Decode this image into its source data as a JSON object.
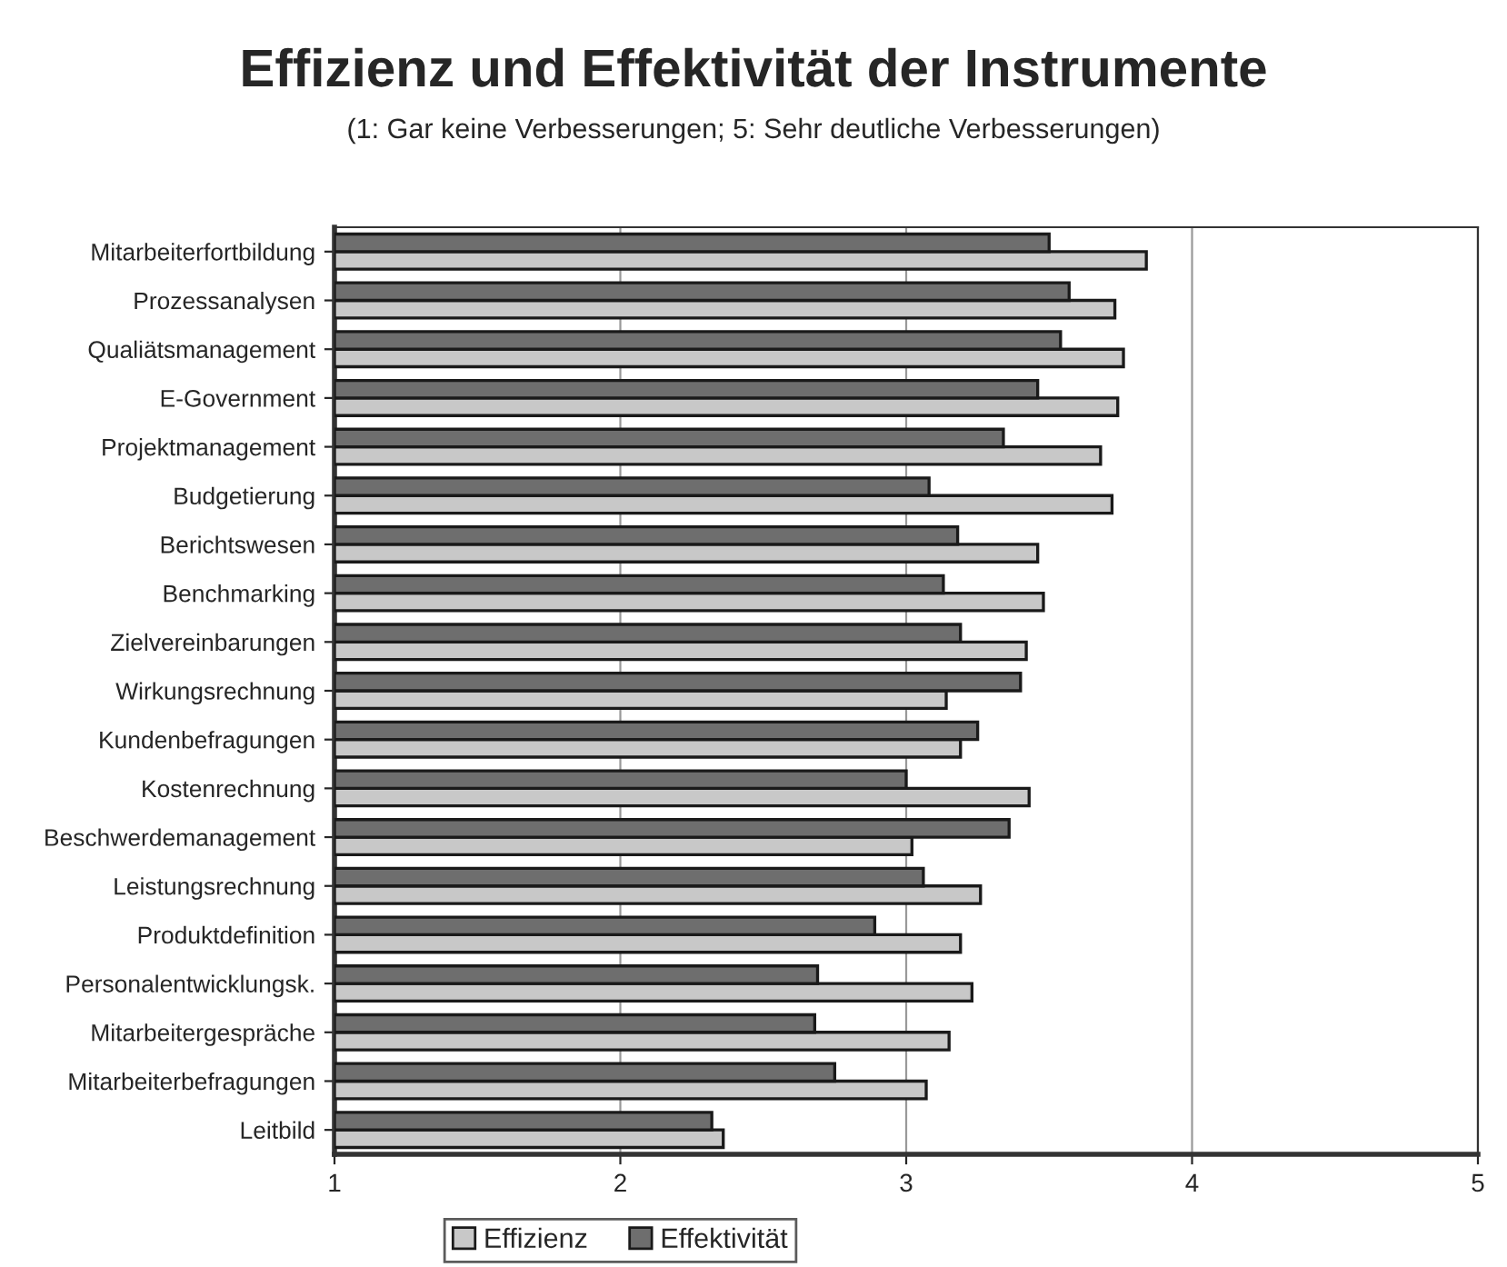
{
  "chart_data": {
    "type": "bar",
    "orientation": "horizontal",
    "title": "Effizienz und Effektivität der Instrumente",
    "subtitle": "(1: Gar keine Verbesserungen; 5: Sehr deutliche Verbesserungen)",
    "categories": [
      "Mitarbeiterfortbildung",
      "Prozessanalysen",
      "Qualiätsmanagement",
      "E-Government",
      "Projektmanagement",
      "Budgetierung",
      "Berichtswesen",
      "Benchmarking",
      "Zielvereinbarungen",
      "Wirkungsrechnung",
      "Kundenbefragungen",
      "Kostenrechnung",
      "Beschwerdemanagement",
      "Leistungsrechnung",
      "Produktdefinition",
      "Personalentwicklungsk.",
      "Mitarbeitergespräche",
      "Mitarbeiterbefragungen",
      "Leitbild"
    ],
    "series": [
      {
        "name": "Effizienz",
        "color": "#c8c8c8",
        "values": [
          3.84,
          3.73,
          3.76,
          3.74,
          3.68,
          3.72,
          3.46,
          3.48,
          3.42,
          3.14,
          3.19,
          3.43,
          3.02,
          3.26,
          3.19,
          3.23,
          3.15,
          3.07,
          2.36
        ]
      },
      {
        "name": "Effektivität",
        "color": "#6e6e6e",
        "values": [
          3.5,
          3.57,
          3.54,
          3.46,
          3.34,
          3.08,
          3.18,
          3.13,
          3.19,
          3.4,
          3.25,
          3.0,
          3.36,
          3.06,
          2.89,
          2.69,
          2.68,
          2.75,
          2.32
        ]
      }
    ],
    "xlim": [
      1,
      5
    ],
    "xticks": [
      1,
      2,
      3,
      4,
      5
    ],
    "grid": "x",
    "legend": "bottom"
  }
}
